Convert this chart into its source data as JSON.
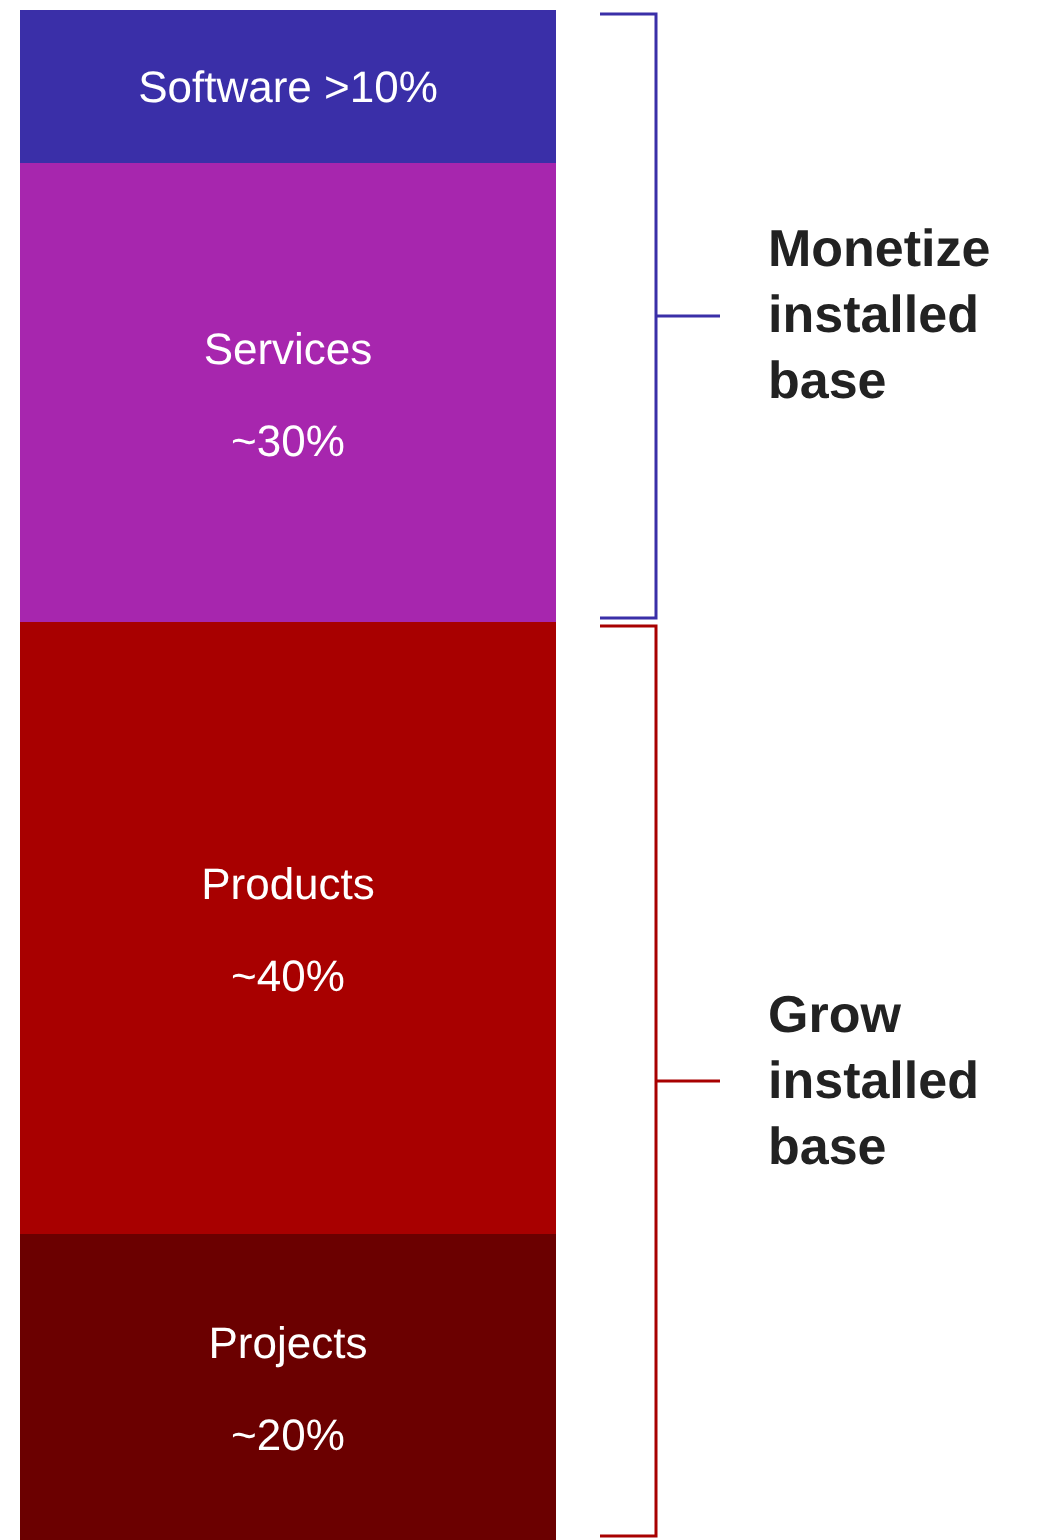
{
  "chart_data": {
    "type": "bar",
    "stacked": true,
    "categories": [
      null
    ],
    "ylim": [
      0,
      100
    ],
    "tick_labels": false,
    "grid": false,
    "legend": false,
    "series": [
      {
        "name": "Projects",
        "color": "#6b0000",
        "values": [
          20
        ],
        "value_labels": [
          "~20%"
        ]
      },
      {
        "name": "Products",
        "color": "#a80000",
        "values": [
          40
        ],
        "value_labels": [
          "~40%"
        ]
      },
      {
        "name": "Services",
        "color": "#a726ae",
        "values": [
          30
        ],
        "value_labels": [
          "~30%"
        ]
      },
      {
        "name": "Software",
        "color": "#3a2fa8",
        "values": [
          10
        ],
        "value_labels": [
          ">10%"
        ]
      }
    ],
    "annotations": [
      "Monetize installed base",
      "Grow installed base"
    ]
  }
}
